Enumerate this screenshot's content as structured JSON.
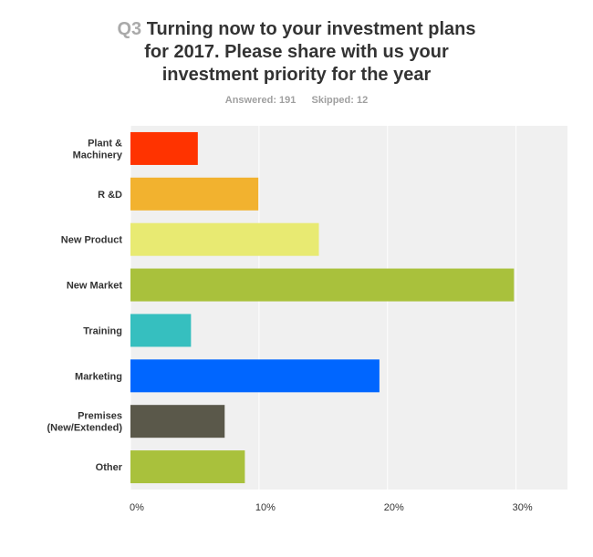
{
  "question": {
    "number": "Q3",
    "title_lines": [
      "Turning now to your investment plans",
      "for 2017.  Please share with us your",
      "investment priority for the year"
    ],
    "answered_label": "Answered: 191",
    "skipped_label": "Skipped: 12"
  },
  "chart_data": {
    "type": "bar",
    "orientation": "horizontal",
    "title": "Turning now to your investment plans for 2017.  Please share with us your investment priority for the year",
    "categories": [
      [
        "Plant &",
        "Machinery"
      ],
      [
        "R &D"
      ],
      [
        "New Product"
      ],
      [
        "New Market"
      ],
      [
        "Training"
      ],
      [
        "Marketing"
      ],
      [
        "Premises",
        "(New/Extended)"
      ],
      [
        "Other"
      ]
    ],
    "values": [
      5.24,
      9.95,
      14.66,
      29.84,
      4.71,
      19.37,
      7.33,
      8.9
    ],
    "colors": [
      "#ff3300",
      "#f2b22f",
      "#e8ea72",
      "#a9c13c",
      "#36bfbf",
      "#0066ff",
      "#5a584a",
      "#a9c13c"
    ],
    "xlim": [
      0,
      34
    ],
    "ticks": [
      0,
      10,
      20,
      30
    ],
    "tick_labels": [
      "0%",
      "10%",
      "20%",
      "30%"
    ],
    "grid": true,
    "plot_background": "#f0f0f0"
  }
}
